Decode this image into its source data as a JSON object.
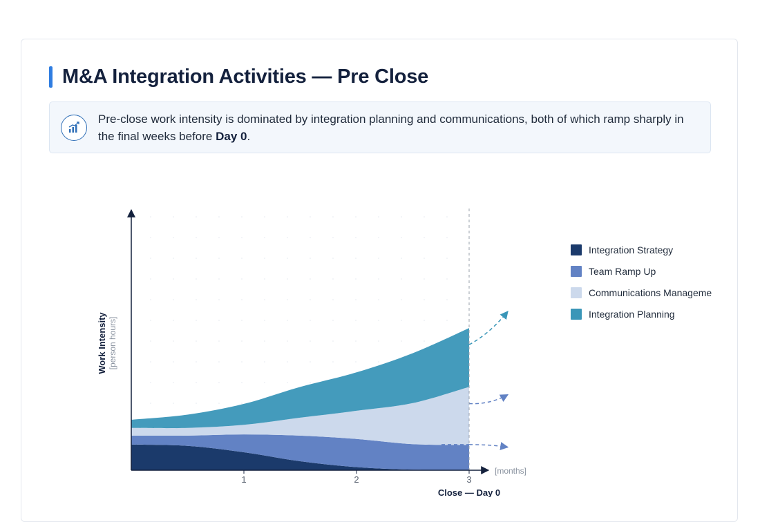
{
  "title": "M&A Integration Activities — Pre Close",
  "callout": {
    "icon": "chart-trend-icon",
    "text_before": "Pre-close work intensity is dominated by integration planning and communications, both of which ramp sharply in the final weeks before ",
    "text_bold": "Day 0",
    "text_after": "."
  },
  "chart_data": {
    "type": "area",
    "stacked": true,
    "x": [
      0,
      0.5,
      1,
      1.5,
      2,
      2.5,
      3
    ],
    "x_ticks": [
      "1",
      "2",
      "3"
    ],
    "x_unit": "[months]",
    "xlabel": "Close — Day 0",
    "ylabel": "Work Intensity",
    "ylabel_sub": "[person hours]",
    "xlim": [
      0,
      3
    ],
    "ylim": [
      0,
      10
    ],
    "grid": "dotted",
    "legend_position": "right",
    "series": [
      {
        "name": "Integration Strategy",
        "color": "#1b3a6b",
        "values": [
          1.0,
          0.95,
          0.7,
          0.35,
          0.12,
          0.02,
          0.0
        ]
      },
      {
        "name": "Team Ramp Up",
        "color": "#6282c4",
        "values": [
          0.35,
          0.4,
          0.7,
          1.0,
          1.1,
          1.0,
          0.98
        ]
      },
      {
        "name": "Communications Manageme",
        "color": "#ccd9ec",
        "values": [
          0.3,
          0.3,
          0.37,
          0.7,
          1.1,
          1.6,
          2.27
        ]
      },
      {
        "name": "Integration Planning",
        "color": "#3a96b8",
        "values": [
          0.32,
          0.52,
          0.82,
          1.2,
          1.5,
          1.95,
          2.3
        ]
      }
    ],
    "projection_arrows": [
      {
        "series": "Integration Planning",
        "from_y": 4.9,
        "to_y": 6.2
      },
      {
        "series": "Communications Manageme",
        "from_y": 2.6,
        "to_y": 2.95
      },
      {
        "series": "Team Ramp Up",
        "from_y": 1.0,
        "to_y": 0.9
      }
    ]
  }
}
